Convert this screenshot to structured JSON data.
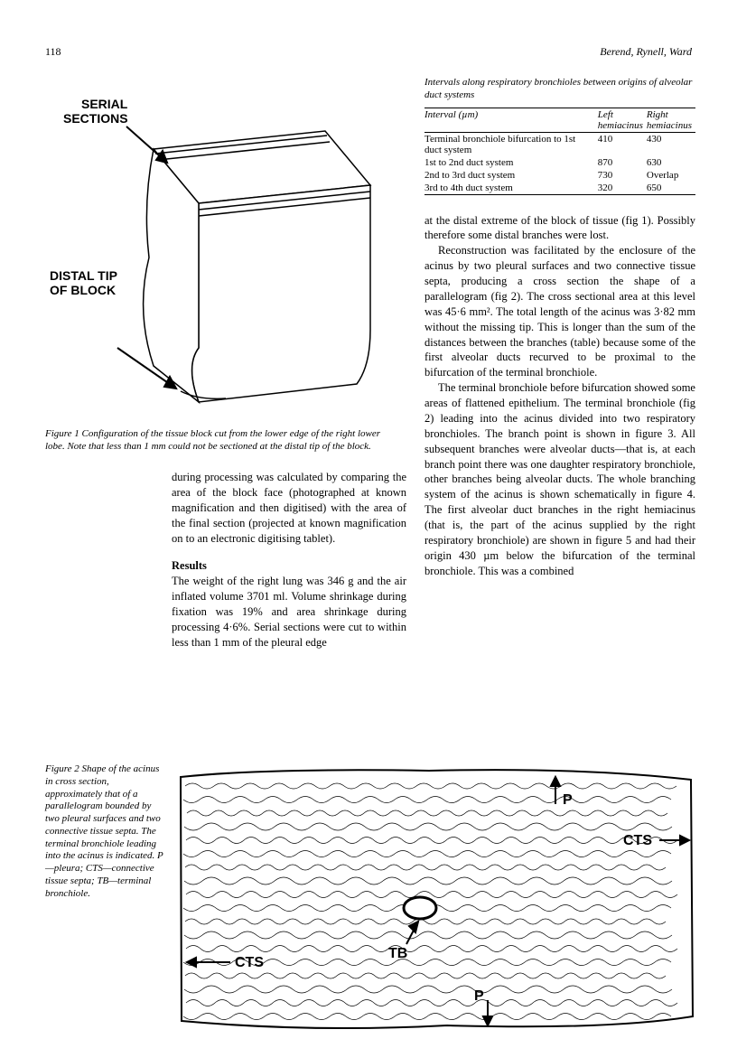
{
  "page_number": "118",
  "authors": "Berend, Rynell, Ward",
  "figure1": {
    "label_serial": "SERIAL SECTIONS",
    "label_distal": "DISTAL TIP OF BLOCK",
    "caption": "Figure 1   Configuration of the tissue block cut from the lower edge of the right lower lobe. Note that less than 1 mm could not be sectioned at the distal tip of the block."
  },
  "left_column": {
    "para1": "during processing was calculated by comparing the area of the block face (photographed at known magnification and then digitised) with the area of the final section (projected at known magnification on to an electronic digitising tablet).",
    "results_heading": "Results",
    "para2": "The weight of the right lung was 346 g and the air inflated volume 3701 ml. Volume shrinkage during fixation was 19% and area shrinkage during processing 4·6%. Serial sections were cut to within less than 1 mm of the pleural edge"
  },
  "table": {
    "caption": "Intervals along respiratory bronchioles between origins of alveolar duct systems",
    "columns": [
      "Interval (µm)",
      "Left hemiacinus",
      "Right hemiacinus"
    ],
    "rows": [
      [
        "Terminal bronchiole bifurcation to 1st duct system",
        "410",
        "430"
      ],
      [
        "1st to 2nd duct system",
        "870",
        "630"
      ],
      [
        "2nd to 3rd duct system",
        "730",
        "Overlap"
      ],
      [
        "3rd to 4th duct system",
        "320",
        "650"
      ]
    ]
  },
  "right_column": {
    "para1": "at the distal extreme of the block of tissue (fig 1). Possibly therefore some distal branches were lost.",
    "para2": "Reconstruction was facilitated by the enclosure of the acinus by two pleural surfaces and two connective tissue septa, producing a cross section the shape of a parallelogram (fig 2). The cross sectional area at this level was 45·6 mm². The total length of the acinus was 3·82 mm without the missing tip. This is longer than the sum of the distances between the branches (table) because some of the first alveolar ducts recurved to be proximal to the bifurcation of the terminal bronchiole.",
    "para3": "The terminal bronchiole before bifurcation showed some areas of flattened epithelium. The terminal bronchiole (fig 2) leading into the acinus divided into two respiratory bronchioles. The branch point is shown in figure 3. All subsequent branches were alveolar ducts—that is, at each branch point there was one daughter respiratory bronchiole, other branches being alveolar ducts. The whole branching system of the acinus is shown schematically in figure 4. The first alveolar duct branches in the right hemiacinus (that is, the part of the acinus supplied by the right respiratory bronchiole) are shown in figure 5 and had their origin 430 µm below the bifurcation of the terminal bronchiole. This was a combined"
  },
  "figure2": {
    "caption": "Figure 2   Shape of the acinus in cross section, approximately that of a parallelogram bounded by two pleural surfaces and two connective tissue septa. The terminal bronchiole leading into the acinus is indicated. P—pleura; CTS—connective tissue septa; TB—terminal bronchiole.",
    "labels": {
      "P_top": "P",
      "P_bottom": "P",
      "CTS_left": "CTS",
      "CTS_right": "CTS",
      "TB": "TB"
    }
  },
  "colors": {
    "text": "#000000",
    "background": "#ffffff",
    "figure_stroke": "#000000"
  }
}
